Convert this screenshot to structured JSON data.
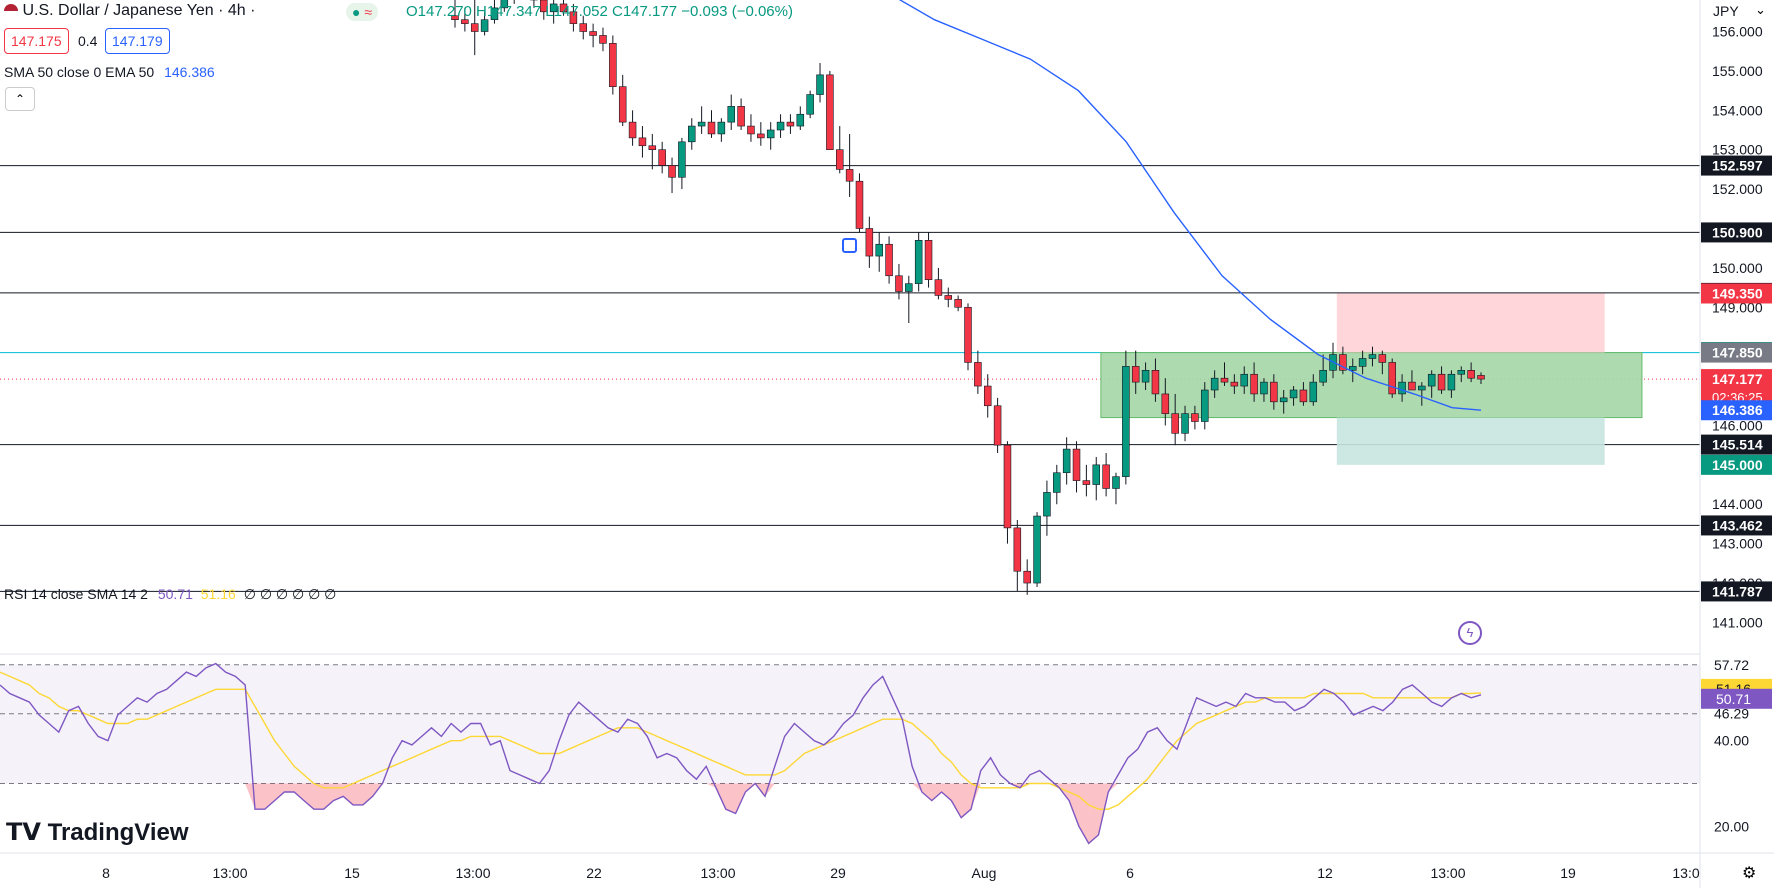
{
  "header": {
    "symbol": "U.S. Dollar / Japanese Yen · 4h ·",
    "ohlc": "O147.270 H147.347 L147.052 C147.177 −0.093 (−0.06%)",
    "bid": "147.175",
    "spread": "0.4",
    "ask": "147.179",
    "sma_label": "SMA 50 close 0 EMA 50",
    "sma_value": "146.386",
    "rsi_label": "RSI 14 close SMA 14 2",
    "rsi_value": "50.71",
    "rsi_sma_value": "51.16",
    "rsi_extras": "∅ ∅ ∅ ∅ ∅ ∅",
    "currency": "JPY",
    "brand": "TradingView",
    "countdown": "02:36:25"
  },
  "colors": {
    "up": "#089981",
    "down": "#f23645",
    "ema": "#2962ff",
    "rsi": "#7e57c2",
    "rsi_sma": "#fdd835",
    "zone_green": "#a5d6a7",
    "zone_red": "#ffcdd2",
    "zone_teal": "#c8e6e0"
  },
  "chart_data": [
    {
      "type": "candlestick",
      "title": "U.S. Dollar / Japanese Yen · 4h",
      "ylim": [
        140.3,
        156.8
      ],
      "y_ticks": [
        141,
        142,
        143,
        144,
        145,
        146,
        147,
        148,
        149,
        150,
        151,
        152,
        153,
        154,
        155,
        156
      ],
      "y_tick_labels": [
        "141.000",
        "142.000",
        "143.000",
        "144.000",
        "145.000",
        "146.000",
        "147.000",
        "148.000",
        "149.000",
        "150.000",
        "151.000",
        "152.000",
        "153.000",
        "154.000",
        "155.000",
        "156.000"
      ],
      "x_ticks": [
        "8",
        "13:00",
        "15",
        "13:00",
        "22",
        "13:00",
        "29",
        "Aug",
        "6",
        "12",
        "13:00",
        "19",
        "13:0"
      ],
      "horizontal_levels": [
        152.597,
        150.9,
        149.365,
        145.514,
        143.462,
        141.787
      ],
      "level_labels": [
        "152.597",
        "150.900",
        "149.365",
        "145.514",
        "143.462",
        "141.787"
      ],
      "marker_labels": [
        {
          "text": "149.350",
          "value": 149.35,
          "kind": "stop"
        },
        {
          "text": "147.864",
          "value": 147.864,
          "kind": "target"
        },
        {
          "text": "147.850",
          "value": 147.85,
          "kind": "entry"
        },
        {
          "text": "147.177",
          "value": 147.177,
          "kind": "last"
        },
        {
          "text": "146.386",
          "value": 146.386,
          "kind": "ema"
        },
        {
          "text": "145.000",
          "value": 145.0,
          "kind": "target2"
        }
      ],
      "zones": [
        {
          "name": "range",
          "x0": 0.62,
          "x1": 0.925,
          "y0": 146.2,
          "y1": 147.85
        },
        {
          "name": "stop",
          "x0": 0.753,
          "x1": 0.904,
          "y0": 147.85,
          "y1": 149.35
        },
        {
          "name": "target",
          "x0": 0.753,
          "x1": 0.904,
          "y0": 145.0,
          "y1": 146.2
        }
      ],
      "candles": [
        [
          156.4,
          156.8,
          156.1,
          156.3
        ],
        [
          156.3,
          156.6,
          156.0,
          156.2
        ],
        [
          156.2,
          156.9,
          155.4,
          156.0
        ],
        [
          156.0,
          156.5,
          155.9,
          156.3
        ],
        [
          156.3,
          156.8,
          156.2,
          156.6
        ],
        [
          156.6,
          157.0,
          156.5,
          156.9
        ],
        [
          156.9,
          157.2,
          156.7,
          157.0
        ],
        [
          157.0,
          157.3,
          156.8,
          156.9
        ],
        [
          156.9,
          157.2,
          156.6,
          156.8
        ],
        [
          156.8,
          157.0,
          156.3,
          156.5
        ],
        [
          156.5,
          156.8,
          156.2,
          156.7
        ],
        [
          156.7,
          156.9,
          156.4,
          156.5
        ],
        [
          156.5,
          156.7,
          156.0,
          156.2
        ],
        [
          156.2,
          156.4,
          155.8,
          156.0
        ],
        [
          156.0,
          156.2,
          155.6,
          155.9
        ],
        [
          155.9,
          156.1,
          155.5,
          155.7
        ],
        [
          155.7,
          155.9,
          154.4,
          154.6
        ],
        [
          154.6,
          154.9,
          153.6,
          153.7
        ],
        [
          153.7,
          154.0,
          153.1,
          153.3
        ],
        [
          153.3,
          153.6,
          152.8,
          153.1
        ],
        [
          153.1,
          153.4,
          152.5,
          153.0
        ],
        [
          153.0,
          153.2,
          152.4,
          152.6
        ],
        [
          152.6,
          152.8,
          151.9,
          152.3
        ],
        [
          152.3,
          153.3,
          152.0,
          153.2
        ],
        [
          153.2,
          153.8,
          153.0,
          153.6
        ],
        [
          153.6,
          154.1,
          153.4,
          153.7
        ],
        [
          153.7,
          154.0,
          153.3,
          153.4
        ],
        [
          153.4,
          153.8,
          153.2,
          153.7
        ],
        [
          153.7,
          154.4,
          153.5,
          154.1
        ],
        [
          154.1,
          154.3,
          153.5,
          153.6
        ],
        [
          153.6,
          153.9,
          153.2,
          153.4
        ],
        [
          153.4,
          153.7,
          153.1,
          153.3
        ],
        [
          153.3,
          153.7,
          153.0,
          153.5
        ],
        [
          153.5,
          153.9,
          153.3,
          153.7
        ],
        [
          153.7,
          153.9,
          153.4,
          153.6
        ],
        [
          153.6,
          154.1,
          153.5,
          153.9
        ],
        [
          153.9,
          154.5,
          153.8,
          154.4
        ],
        [
          154.4,
          155.2,
          154.2,
          154.9
        ],
        [
          154.9,
          155.0,
          153.0,
          153.0
        ],
        [
          153.0,
          153.6,
          152.4,
          152.5
        ],
        [
          152.5,
          153.4,
          151.8,
          152.2
        ],
        [
          152.2,
          152.4,
          150.9,
          151.0
        ],
        [
          151.0,
          151.3,
          150.0,
          150.3
        ],
        [
          150.3,
          150.9,
          149.9,
          150.6
        ],
        [
          150.6,
          150.8,
          149.6,
          149.8
        ],
        [
          149.8,
          150.1,
          149.2,
          149.4
        ],
        [
          149.4,
          149.8,
          148.6,
          149.6
        ],
        [
          149.6,
          150.9,
          149.4,
          150.7
        ],
        [
          150.7,
          150.9,
          149.5,
          149.7
        ],
        [
          149.7,
          150.0,
          149.2,
          149.3
        ],
        [
          149.3,
          149.5,
          149.0,
          149.2
        ],
        [
          149.2,
          149.3,
          148.9,
          149.0
        ],
        [
          149.0,
          149.1,
          147.4,
          147.6
        ],
        [
          147.6,
          147.9,
          146.8,
          147.0
        ],
        [
          147.0,
          147.3,
          146.2,
          146.5
        ],
        [
          146.5,
          146.7,
          145.3,
          145.5
        ],
        [
          145.5,
          145.6,
          143.0,
          143.4
        ],
        [
          143.4,
          143.6,
          141.8,
          142.3
        ],
        [
          142.3,
          142.6,
          141.7,
          142.0
        ],
        [
          142.0,
          143.8,
          141.9,
          143.7
        ],
        [
          143.7,
          144.6,
          143.2,
          144.3
        ],
        [
          144.3,
          145.0,
          144.0,
          144.8
        ],
        [
          144.8,
          145.7,
          144.5,
          145.4
        ],
        [
          145.4,
          145.6,
          144.3,
          144.6
        ],
        [
          144.6,
          145.0,
          144.2,
          144.5
        ],
        [
          144.5,
          145.2,
          144.1,
          145.0
        ],
        [
          145.0,
          145.3,
          144.2,
          144.4
        ],
        [
          144.4,
          144.8,
          144.0,
          144.7
        ],
        [
          144.7,
          147.9,
          144.5,
          147.5
        ],
        [
          147.5,
          147.9,
          146.8,
          147.1
        ],
        [
          147.1,
          147.6,
          146.9,
          147.4
        ],
        [
          147.4,
          147.7,
          146.6,
          146.8
        ],
        [
          146.8,
          147.2,
          146.0,
          146.3
        ],
        [
          146.3,
          146.8,
          145.5,
          145.8
        ],
        [
          145.8,
          146.5,
          145.6,
          146.3
        ],
        [
          146.3,
          146.5,
          145.9,
          146.1
        ],
        [
          146.1,
          147.1,
          145.9,
          146.9
        ],
        [
          146.9,
          147.4,
          146.7,
          147.2
        ],
        [
          147.2,
          147.6,
          147.0,
          147.1
        ],
        [
          147.1,
          147.3,
          146.8,
          147.0
        ],
        [
          147.0,
          147.5,
          146.8,
          147.3
        ],
        [
          147.3,
          147.6,
          146.6,
          146.8
        ],
        [
          146.8,
          147.2,
          146.6,
          147.1
        ],
        [
          147.1,
          147.3,
          146.4,
          146.6
        ],
        [
          146.6,
          146.9,
          146.3,
          146.7
        ],
        [
          146.7,
          147.0,
          146.5,
          146.9
        ],
        [
          146.9,
          147.1,
          146.5,
          146.6
        ],
        [
          146.6,
          147.3,
          146.5,
          147.1
        ],
        [
          147.1,
          147.8,
          147.0,
          147.4
        ],
        [
          147.4,
          148.1,
          147.2,
          147.8
        ],
        [
          147.8,
          148.0,
          147.3,
          147.4
        ],
        [
          147.4,
          147.7,
          147.1,
          147.5
        ],
        [
          147.5,
          147.9,
          147.3,
          147.7
        ],
        [
          147.7,
          148.0,
          147.5,
          147.8
        ],
        [
          147.8,
          147.9,
          147.3,
          147.6
        ],
        [
          147.6,
          147.7,
          146.7,
          146.8
        ],
        [
          146.8,
          147.3,
          146.6,
          147.1
        ],
        [
          147.1,
          147.4,
          146.9,
          146.9
        ],
        [
          146.9,
          147.1,
          146.5,
          147.0
        ],
        [
          147.0,
          147.4,
          146.7,
          147.3
        ],
        [
          147.3,
          147.5,
          146.8,
          146.9
        ],
        [
          146.9,
          147.4,
          146.7,
          147.3
        ],
        [
          147.3,
          147.5,
          147.1,
          147.4
        ],
        [
          147.4,
          147.6,
          147.1,
          147.2
        ],
        [
          147.27,
          147.347,
          147.052,
          147.177
        ]
      ],
      "ema": [
        [
          0.4,
          157.5
        ],
        [
          0.45,
          157.0
        ],
        [
          0.5,
          156.3
        ],
        [
          0.55,
          155.8
        ],
        [
          0.6,
          155.3
        ],
        [
          0.65,
          154.5
        ],
        [
          0.7,
          153.2
        ],
        [
          0.75,
          151.4
        ],
        [
          0.8,
          149.8
        ],
        [
          0.85,
          148.7
        ],
        [
          0.9,
          147.8
        ],
        [
          0.95,
          147.2
        ],
        [
          1.0,
          146.8
        ],
        [
          1.04,
          146.45
        ],
        [
          1.07,
          146.386
        ]
      ]
    },
    {
      "type": "line",
      "title": "RSI 14 close SMA 14 2",
      "ylim": [
        14,
        60
      ],
      "y_tick_labels": [
        "57.72",
        "46.29",
        "40.00",
        "20.00"
      ],
      "upper_band": 57.72,
      "lower_band": 30,
      "mid_band": 46.29,
      "value_labels": [
        {
          "text": "51.16",
          "value": 51.16,
          "kind": "sma"
        },
        {
          "text": "50.71",
          "value": 50.71,
          "kind": "rsi"
        }
      ],
      "series": [
        {
          "name": "RSI",
          "values": [
            53,
            51,
            50,
            49,
            46,
            44,
            42,
            47,
            48,
            44,
            41,
            40,
            46,
            48,
            50,
            49,
            51,
            52,
            54,
            56,
            55,
            57,
            58,
            56,
            55,
            53,
            24,
            24,
            26,
            28,
            28,
            26,
            24,
            24,
            26,
            27,
            25,
            25,
            27,
            30,
            36,
            40,
            39,
            41,
            43,
            41,
            44,
            42,
            44,
            44,
            39,
            40,
            33,
            32,
            31,
            30,
            33,
            40,
            46,
            49,
            47,
            45,
            43,
            42,
            45,
            44,
            41,
            36,
            37,
            36,
            33,
            31,
            34,
            29,
            24,
            23,
            28,
            30,
            27,
            34,
            41,
            44,
            42,
            40,
            39,
            41,
            44,
            46,
            50,
            53,
            55,
            50,
            45,
            34,
            28,
            26,
            28,
            26,
            22,
            24,
            33,
            36,
            32,
            30,
            29,
            32,
            33,
            31,
            29,
            26,
            20,
            16,
            18,
            28,
            32,
            36,
            38,
            42,
            43,
            40,
            38,
            44,
            50,
            49,
            48,
            49,
            48,
            51,
            50,
            50,
            49,
            49,
            47,
            48,
            50,
            52,
            51,
            49,
            46,
            47,
            48,
            47,
            49,
            52,
            53,
            51,
            49,
            48,
            50,
            51,
            50,
            50.71
          ]
        },
        {
          "name": "SMA",
          "values": [
            56,
            55,
            54,
            53,
            51,
            50,
            48,
            47,
            47,
            46,
            45,
            44,
            44,
            44,
            45,
            45,
            46,
            47,
            48,
            49,
            50,
            51,
            52,
            52,
            52,
            52,
            48,
            44,
            40,
            37,
            34,
            32,
            30,
            29,
            29,
            29,
            30,
            31,
            32,
            33,
            34,
            35,
            36,
            37,
            38,
            39,
            40,
            40,
            41,
            41,
            41,
            41,
            40,
            39,
            38,
            37,
            37,
            37,
            38,
            39,
            40,
            41,
            42,
            43,
            43,
            43,
            42,
            41,
            40,
            39,
            38,
            37,
            36,
            35,
            34,
            33,
            32,
            32,
            32,
            32,
            33,
            35,
            37,
            38,
            39,
            40,
            41,
            42,
            43,
            44,
            45,
            45,
            45,
            44,
            42,
            40,
            37,
            35,
            32,
            30,
            29,
            29,
            29,
            29,
            29,
            30,
            30,
            30,
            29,
            28,
            27,
            25,
            24,
            24,
            25,
            27,
            29,
            31,
            34,
            37,
            40,
            42,
            44,
            45,
            46,
            47,
            48,
            49,
            49,
            50,
            50,
            50,
            50,
            50,
            51,
            51,
            51,
            51,
            51,
            51,
            50,
            50,
            50,
            50,
            50,
            50,
            50,
            50,
            50,
            51,
            51,
            51.16
          ]
        }
      ]
    }
  ]
}
